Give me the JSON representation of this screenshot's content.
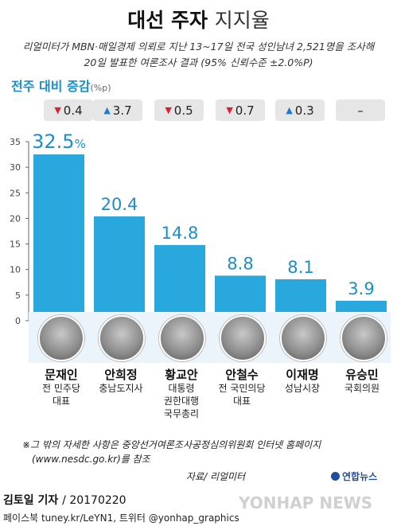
{
  "header": {
    "title_bold": "대선 주자",
    "title_light": "지지율",
    "subtitle_line1": "리얼미터가 MBN·매일경제 의뢰로 지난 13~17일 전국 성인남녀 2,521명을 조사해",
    "subtitle_line2": "20일 발표한 여론조사 결과 (95% 신뢰수준 ±2.0%P)"
  },
  "change": {
    "title": "전주 대비 증감",
    "unit": "(%p)",
    "items": [
      {
        "direction": "down",
        "arrow": "▼",
        "value": "0.4"
      },
      {
        "direction": "up",
        "arrow": "▲",
        "value": "3.7"
      },
      {
        "direction": "down",
        "arrow": "▼",
        "value": "0.5"
      },
      {
        "direction": "down",
        "arrow": "▼",
        "value": "0.7"
      },
      {
        "direction": "up",
        "arrow": "▲",
        "value": "0.3"
      },
      {
        "direction": "none",
        "arrow": "",
        "value": "–"
      }
    ]
  },
  "chart_data": {
    "type": "bar",
    "categories": [
      "문재인",
      "안희정",
      "황교안",
      "안철수",
      "이재명",
      "유승민"
    ],
    "values": [
      32.5,
      20.4,
      14.8,
      8.8,
      8.1,
      3.9
    ],
    "value_labels": [
      "32.5",
      "20.4",
      "14.8",
      "8.8",
      "8.1",
      "3.9"
    ],
    "first_label_suffix": "%",
    "ylim": [
      0,
      35
    ],
    "yticks": [
      0,
      5,
      10,
      15,
      20,
      25,
      30,
      35
    ],
    "title": "",
    "xlabel": "",
    "ylabel": "",
    "grid": false,
    "bar_color": "#29a8de",
    "label_color": "#1a8fc9"
  },
  "candidates": [
    {
      "name": "문재인",
      "roles": [
        "전 민주당",
        "대표"
      ]
    },
    {
      "name": "안희정",
      "roles": [
        "충남도지사"
      ]
    },
    {
      "name": "황교안",
      "roles": [
        "대통령",
        "권한대행",
        "국무총리"
      ]
    },
    {
      "name": "안철수",
      "roles": [
        "전 국민의당",
        "대표"
      ]
    },
    {
      "name": "이재명",
      "roles": [
        "성남시장"
      ]
    },
    {
      "name": "유승민",
      "roles": [
        "국회의원"
      ]
    }
  ],
  "footer": {
    "note_line1": "※그 밖의 자세한 사항은 중앙선거여론조사공정심의위원회 인터넷 홈페이지",
    "note_line2": "(www.nesdc.go.kr)를 참조",
    "source": "자료/ 리얼미터",
    "author": "김토일 기자",
    "date": "/ 20170220",
    "social": "페이스북 tuney.kr/LeYN1, 트위터 @yonhap_graphics",
    "logo": "연합뉴스",
    "watermark": "YONHAP NEWS"
  },
  "colors": {
    "accent": "#1a8fc9",
    "bar": "#29a8de",
    "down": "#d9232e",
    "up": "#1e7bc7"
  }
}
